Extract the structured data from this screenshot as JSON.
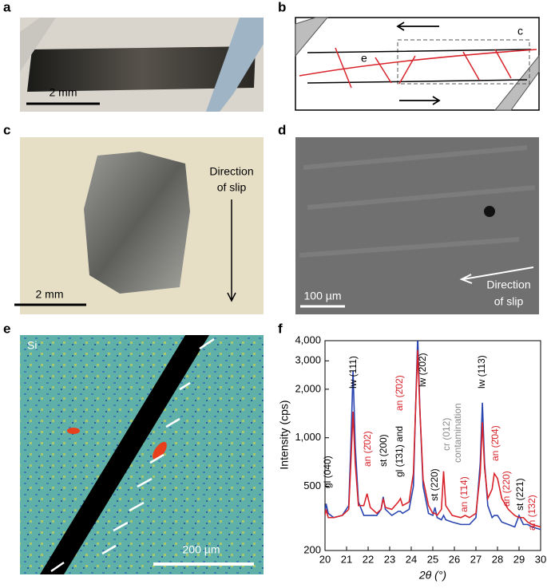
{
  "panels": {
    "a": {
      "letter": "a",
      "scale_bar": "2 mm"
    },
    "b": {
      "letter": "b",
      "labels": [
        "c",
        "e"
      ]
    },
    "c": {
      "letter": "c",
      "scale_bar": "2 mm",
      "annotation": [
        "Direction",
        "of slip"
      ]
    },
    "d": {
      "letter": "d",
      "scale_bar": "100 µm",
      "annotation": [
        "Direction",
        "of slip"
      ]
    },
    "e": {
      "letter": "e",
      "element": "Si",
      "scale_bar": "200 µm"
    },
    "f": {
      "letter": "f"
    }
  },
  "chart_data": {
    "type": "line",
    "xlabel": "2θ (°)",
    "ylabel": "Intensity (cps)",
    "yscale": "log",
    "xlim": [
      20,
      30
    ],
    "xticks": [
      20,
      21,
      22,
      23,
      24,
      25,
      26,
      27,
      28,
      29,
      30
    ],
    "ylim": [
      200,
      4000
    ],
    "yticks": [
      200,
      500,
      {
        "value": 1000,
        "label": "1,000"
      },
      {
        "value": 2000,
        "label": "2,000"
      },
      {
        "value": 3000,
        "label": "3,000"
      },
      {
        "value": 4000,
        "label": "4,000"
      }
    ],
    "x": [
      20,
      20.05,
      20.15,
      20.4,
      20.8,
      21.1,
      21.2,
      21.3,
      21.4,
      21.55,
      21.8,
      21.95,
      22.1,
      22.4,
      22.6,
      22.7,
      22.8,
      23.1,
      23.4,
      23.5,
      23.6,
      23.9,
      24.1,
      24.2,
      24.3,
      24.4,
      24.55,
      24.8,
      25.0,
      25.1,
      25.2,
      25.4,
      25.5,
      25.6,
      25.9,
      26.3,
      26.5,
      26.7,
      27.0,
      27.2,
      27.3,
      27.4,
      27.55,
      27.75,
      27.85,
      28.0,
      28.2,
      28.5,
      28.8,
      29.0,
      29.2,
      29.4,
      29.6,
      30
    ],
    "series": [
      {
        "color": "#2a45b0",
        "values": [
          340,
          390,
          340,
          320,
          330,
          380,
          900,
          2600,
          900,
          400,
          330,
          330,
          330,
          330,
          360,
          430,
          360,
          330,
          350,
          350,
          340,
          360,
          500,
          1500,
          4300,
          1500,
          500,
          340,
          330,
          370,
          320,
          310,
          330,
          310,
          300,
          290,
          290,
          290,
          320,
          700,
          1650,
          700,
          380,
          320,
          330,
          330,
          300,
          290,
          280,
          330,
          290,
          290,
          280,
          270
        ]
      },
      {
        "color": "#d8232a",
        "values": [
          330,
          360,
          320,
          320,
          330,
          360,
          700,
          1450,
          700,
          380,
          380,
          450,
          370,
          340,
          360,
          420,
          370,
          360,
          400,
          420,
          380,
          400,
          600,
          1500,
          3500,
          1500,
          550,
          380,
          340,
          340,
          330,
          360,
          620,
          380,
          330,
          320,
          330,
          320,
          340,
          600,
          1250,
          650,
          420,
          480,
          600,
          560,
          420,
          360,
          330,
          320,
          320,
          300,
          290,
          280
        ]
      }
    ],
    "annotations": [
      {
        "text": "gl (040)",
        "color": "#000000"
      },
      {
        "text": "lw (111)",
        "color": "#000000"
      },
      {
        "text": "an (2̄02)",
        "color": "#d8232a"
      },
      {
        "text": "st (200)",
        "color": "#000000"
      },
      {
        "text": "gl (1̄31) and",
        "color": "#000000"
      },
      {
        "text": "an (2̄02)",
        "color": "#d8232a"
      },
      {
        "text": "lw (202)",
        "color": "#000000"
      },
      {
        "text": "st (220)",
        "color": "#000000"
      },
      {
        "text": "cr (012)",
        "color": "#8a8a8a"
      },
      {
        "text": "contamination",
        "color": "#8a8a8a"
      },
      {
        "text": "an (1̄14)",
        "color": "#d8232a"
      },
      {
        "text": "lw (113)",
        "color": "#000000"
      },
      {
        "text": "an (2̄04)",
        "color": "#d8232a"
      },
      {
        "text": "an (220)",
        "color": "#d8232a"
      },
      {
        "text": "st (221)",
        "color": "#000000"
      },
      {
        "text": "an (1̄32)",
        "color": "#d8232a"
      }
    ]
  }
}
